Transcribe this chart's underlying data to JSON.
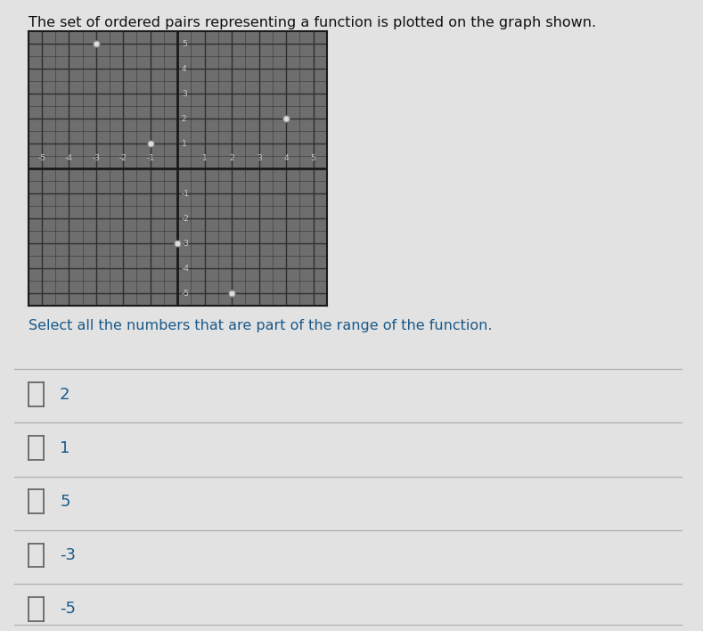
{
  "title_text": "The set of ordered pairs representing a function is plotted on the graph shown.",
  "subtitle_text": "Select all the numbers that are part of the range of the function.",
  "answer_choices": [
    "2",
    "1",
    "5",
    "-3",
    "-5"
  ],
  "page_bg": "#e2e2e2",
  "grid_bg": "#6e6e6e",
  "grid_color": "#2e2e2e",
  "axis_color": "#1a1a1a",
  "title_color": "#111111",
  "subtitle_color": "#1a5a8a",
  "choice_color": "#1a5a8a",
  "axis_range": [
    -5,
    5
  ],
  "points": [
    [
      -3,
      5
    ],
    [
      -1,
      1
    ],
    [
      0,
      -3
    ],
    [
      2,
      -5
    ],
    [
      4,
      2
    ]
  ],
  "point_color": "#dddddd",
  "checkbox_color": "#666666",
  "line_color": "#b0b0b0",
  "figsize": [
    7.89,
    7.08
  ],
  "dpi": 100
}
